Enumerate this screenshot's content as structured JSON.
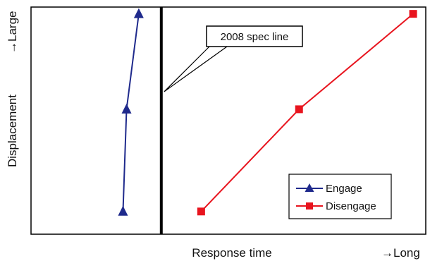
{
  "chart_data": {
    "type": "line",
    "xlabel": "Response time",
    "xlabel_arrow": "→Long",
    "ylabel": "Displacement",
    "ylabel_arrow": "→Large",
    "xlim": [
      0,
      100
    ],
    "ylim": [
      0,
      100
    ],
    "grid": false,
    "legend_position": "bottom-right",
    "spec_line": {
      "x": 33,
      "label": "2008 spec line"
    },
    "series": [
      {
        "name": "Engage",
        "color": "#1f2a8c",
        "marker": "triangle",
        "points": [
          {
            "x": 23.3,
            "y": 10
          },
          {
            "x": 24.2,
            "y": 55
          },
          {
            "x": 27.3,
            "y": 97
          }
        ]
      },
      {
        "name": "Disengage",
        "color": "#e8141e",
        "marker": "square",
        "points": [
          {
            "x": 43.1,
            "y": 10
          },
          {
            "x": 67.9,
            "y": 55
          },
          {
            "x": 96.8,
            "y": 97
          }
        ]
      }
    ]
  }
}
